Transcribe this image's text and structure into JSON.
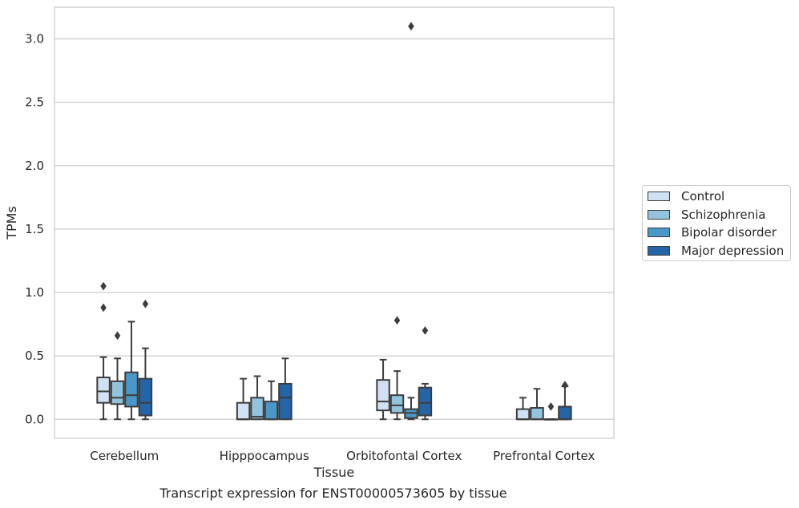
{
  "chart_data": {
    "type": "box",
    "title": "",
    "caption": "Transcript expression for ENST00000573605 by tissue",
    "xlabel": "Tissue",
    "ylabel": "TPMs",
    "ylim": [
      -0.15,
      3.25
    ],
    "yticks": [
      "0.0",
      "0.5",
      "1.0",
      "1.5",
      "2.0",
      "2.5",
      "3.0"
    ],
    "ytick_values": [
      0,
      0.5,
      1.0,
      1.5,
      2.0,
      2.5,
      3.0
    ],
    "grid": "horizontal",
    "legend_position": "right",
    "categories": [
      "Cerebellum",
      "Hipppocampus",
      "Orbitofontal Cortex",
      "Prefrontal Cortex"
    ],
    "series": [
      {
        "name": "Control",
        "color": "#cfe1f2",
        "boxes": [
          {
            "whislo": 0.0,
            "q1": 0.13,
            "med": 0.22,
            "q3": 0.33,
            "whishi": 0.49,
            "fliers": [
              0.88,
              1.05
            ]
          },
          {
            "whislo": 0.0,
            "q1": 0.0,
            "med": 0.0,
            "q3": 0.13,
            "whishi": 0.32,
            "fliers": []
          },
          {
            "whislo": 0.0,
            "q1": 0.07,
            "med": 0.14,
            "q3": 0.31,
            "whishi": 0.47,
            "fliers": []
          },
          {
            "whislo": 0.0,
            "q1": 0.0,
            "med": 0.0,
            "q3": 0.08,
            "whishi": 0.17,
            "fliers": []
          }
        ]
      },
      {
        "name": "Schizophrenia",
        "color": "#93c4de",
        "boxes": [
          {
            "whislo": 0.0,
            "q1": 0.12,
            "med": 0.17,
            "q3": 0.3,
            "whishi": 0.48,
            "fliers": [
              0.66
            ]
          },
          {
            "whislo": 0.0,
            "q1": 0.0,
            "med": 0.02,
            "q3": 0.17,
            "whishi": 0.34,
            "fliers": []
          },
          {
            "whislo": 0.0,
            "q1": 0.05,
            "med": 0.11,
            "q3": 0.19,
            "whishi": 0.38,
            "fliers": [
              0.78
            ]
          },
          {
            "whislo": 0.0,
            "q1": 0.0,
            "med": 0.0,
            "q3": 0.09,
            "whishi": 0.24,
            "fliers": []
          }
        ]
      },
      {
        "name": "Bipolar disorder",
        "color": "#4a98c9",
        "boxes": [
          {
            "whislo": 0.0,
            "q1": 0.1,
            "med": 0.19,
            "q3": 0.37,
            "whishi": 0.77,
            "fliers": []
          },
          {
            "whislo": 0.0,
            "q1": 0.0,
            "med": 0.0,
            "q3": 0.14,
            "whishi": 0.3,
            "fliers": []
          },
          {
            "whislo": 0.0,
            "q1": 0.01,
            "med": 0.05,
            "q3": 0.08,
            "whishi": 0.17,
            "fliers": [
              3.1
            ]
          },
          {
            "whislo": 0.0,
            "q1": 0.0,
            "med": 0.0,
            "q3": 0.0,
            "whishi": 0.0,
            "fliers": [
              0.1
            ]
          }
        ]
      },
      {
        "name": "Major depression",
        "color": "#2464a8",
        "boxes": [
          {
            "whislo": 0.0,
            "q1": 0.03,
            "med": 0.13,
            "q3": 0.32,
            "whishi": 0.56,
            "fliers": [
              0.91
            ]
          },
          {
            "whislo": 0.0,
            "q1": 0.0,
            "med": 0.17,
            "q3": 0.28,
            "whishi": 0.48,
            "fliers": []
          },
          {
            "whislo": 0.0,
            "q1": 0.03,
            "med": 0.13,
            "q3": 0.25,
            "whishi": 0.28,
            "fliers": [
              0.7
            ]
          },
          {
            "whislo": 0.0,
            "q1": 0.0,
            "med": 0.0,
            "q3": 0.1,
            "whishi": 0.26,
            "fliers": [
              0.27
            ]
          }
        ]
      }
    ]
  }
}
